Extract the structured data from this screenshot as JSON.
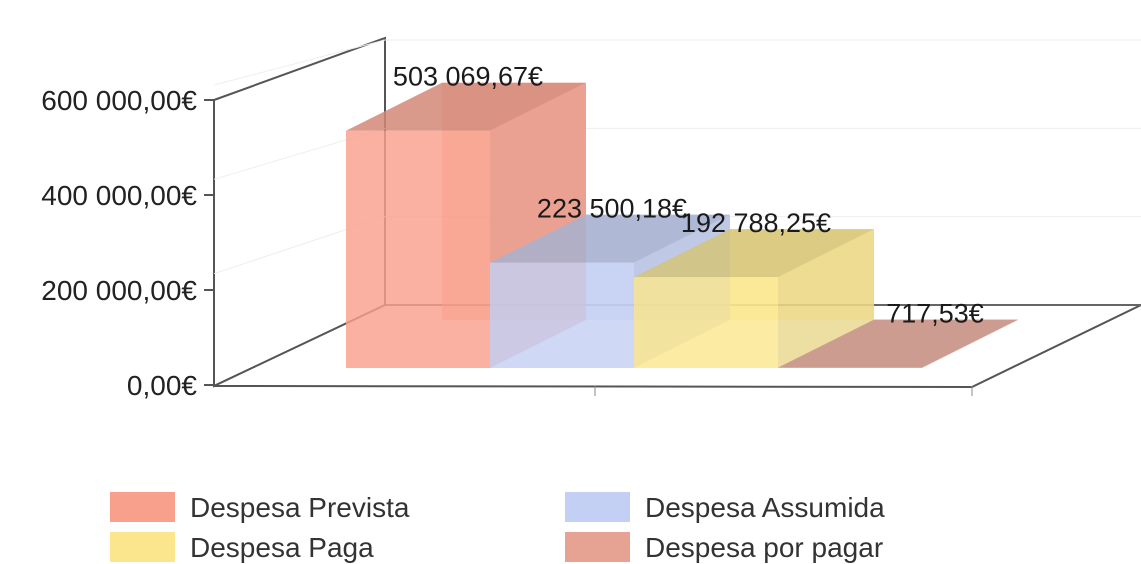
{
  "chart_data": {
    "type": "bar",
    "title": "",
    "xlabel": "",
    "ylabel": "",
    "ylim": [
      0,
      600000
    ],
    "yticks": [
      {
        "value": 0,
        "label": "0,00€"
      },
      {
        "value": 200000,
        "label": "200 000,00€"
      },
      {
        "value": 400000,
        "label": "400 000,00€"
      },
      {
        "value": 600000,
        "label": "600 000,00€"
      }
    ],
    "grid": true,
    "projection": "3d",
    "legend_position": "bottom",
    "series": [
      {
        "name": "Despesa Prevista",
        "value": 503069.67,
        "label": "503 069,67€",
        "color": "#f9a08c"
      },
      {
        "name": "Despesa Assumida",
        "value": 223500.18,
        "label": "223 500,18€",
        "color": "#c4d0f3"
      },
      {
        "name": "Despesa Paga",
        "value": 192788.25,
        "label": "192 788,25€",
        "color": "#fbe68d"
      },
      {
        "name": "Despesa por pagar",
        "value": 717.53,
        "label": "717,53€",
        "color": "#e6a394"
      }
    ]
  }
}
